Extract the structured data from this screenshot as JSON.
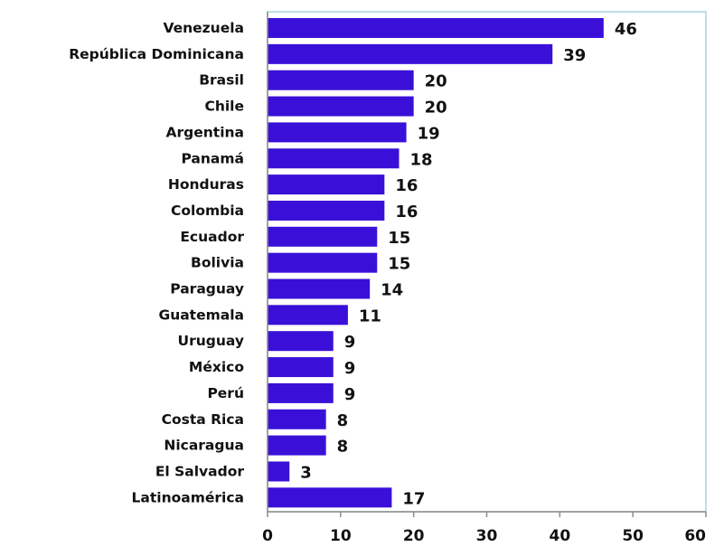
{
  "chart_data": {
    "type": "bar",
    "orientation": "horizontal",
    "categories": [
      "Venezuela",
      "República Dominicana",
      "Brasil",
      "Chile",
      "Argentina",
      "Panamá",
      "Honduras",
      "Colombia",
      "Ecuador",
      "Bolivia",
      "Paraguay",
      "Guatemala",
      "Uruguay",
      "México",
      "Perú",
      "Costa Rica",
      "Nicaragua",
      "El Salvador",
      "Latinoamérica"
    ],
    "values": [
      46,
      39,
      20,
      20,
      19,
      18,
      16,
      16,
      15,
      15,
      14,
      11,
      9,
      9,
      9,
      8,
      8,
      3,
      17
    ],
    "value_labels": [
      "46",
      "39",
      "20",
      "20",
      "19",
      "18",
      "16",
      "16",
      "15",
      "15",
      "14",
      "11",
      "9",
      "9",
      "9",
      "8",
      "8",
      "3",
      "17"
    ],
    "xlim": [
      0,
      60
    ],
    "x_ticks": [
      "0",
      "10",
      "20",
      "30",
      "40",
      "50",
      "60"
    ],
    "grid": false,
    "legend": "none",
    "bar_color": "#3a10d8",
    "frame_color": "#a9d3de"
  }
}
